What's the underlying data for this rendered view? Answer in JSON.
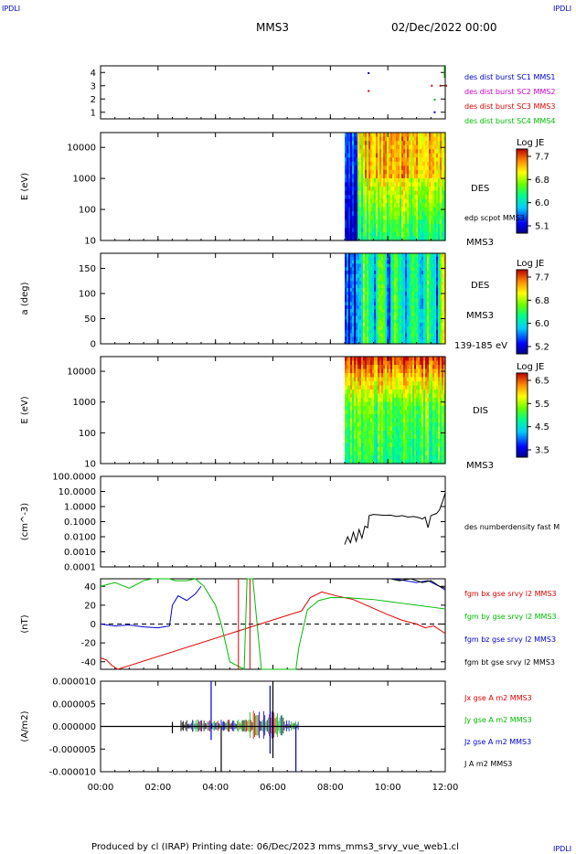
{
  "header": {
    "logo_left": "IPDLI",
    "logo_right": "IPDLI",
    "title": "MMS3",
    "date": "02/Dec/2022 00:00"
  },
  "footer": {
    "text": "Produced by cl (IRAP)   Printing date: 06/Dec/2023   mms_mms3_srvy_vue_web1.cl",
    "logo_right": "IPDLI"
  },
  "colors": {
    "blue": "#0000cc",
    "magenta": "#cc00cc",
    "red": "#dd0000",
    "green": "#00bb00",
    "black": "#000000"
  },
  "time_axis": {
    "ticks": [
      "00:00",
      "02:00",
      "04:00",
      "06:00",
      "08:00",
      "10:00",
      "12:00"
    ],
    "range_hours": [
      0,
      12
    ]
  },
  "chart_data": [
    {
      "type": "scatter",
      "panel": "burst-availability",
      "yticks": [
        "1",
        "2",
        "3",
        "4"
      ],
      "ylim": [
        0.5,
        4.5
      ],
      "legend": [
        {
          "label": "des dist burst SC1 MMS1",
          "color": "#0000cc"
        },
        {
          "label": "des dist burst SC2 MMS2",
          "color": "#cc00cc"
        },
        {
          "label": "des dist burst SC3 MMS3",
          "color": "#dd0000"
        },
        {
          "label": "des dist burst SC4 MMS4",
          "color": "#00bb00"
        }
      ],
      "points": [
        [
          9.3,
          3.95
        ],
        [
          11.5,
          3.0
        ],
        [
          11.8,
          3.0
        ],
        [
          12.0,
          3.0
        ],
        [
          9.3,
          2.6
        ],
        [
          11.6,
          1.95
        ],
        [
          11.6,
          1.0
        ]
      ]
    },
    {
      "type": "heatmap",
      "panel": "des-energy",
      "ylabel": "E (eV)",
      "yticks": [
        "10",
        "100",
        "1000",
        "10000"
      ],
      "yscale": "log",
      "ylim": [
        10,
        30000
      ],
      "data_start_hour": 8.5,
      "colorbar": {
        "title": "Log JE",
        "ticks": [
          "7.7",
          "6.8",
          "6.0",
          "5.1"
        ]
      },
      "labels": [
        "DES",
        "edp scpot MMS3",
        "MMS3"
      ]
    },
    {
      "type": "heatmap",
      "panel": "des-pitch-angle",
      "ylabel": "a (deg)",
      "yticks": [
        "0",
        "50",
        "100",
        "150"
      ],
      "ylim": [
        0,
        180
      ],
      "data_start_hour": 8.5,
      "colorbar": {
        "title": "Log JE",
        "ticks": [
          "7.7",
          "6.8",
          "6.0",
          "5.2"
        ]
      },
      "labels": [
        "DES",
        "MMS3",
        "139-185 eV"
      ]
    },
    {
      "type": "heatmap",
      "panel": "dis-energy",
      "ylabel": "E (eV)",
      "yticks": [
        "10",
        "100",
        "1000",
        "10000"
      ],
      "yscale": "log",
      "ylim": [
        10,
        30000
      ],
      "data_start_hour": 8.5,
      "colorbar": {
        "title": "Log JE",
        "ticks": [
          "6.5",
          "5.5",
          "4.5",
          "3.5"
        ]
      },
      "labels": [
        "DIS",
        "MMS3"
      ]
    },
    {
      "type": "line",
      "panel": "density",
      "ylabel": "(cm^-3)",
      "yscale": "log",
      "yticks": [
        "0.0001",
        "0.0010",
        "0.0100",
        "0.1000",
        "1.0000",
        "10.0000",
        "100.0000"
      ],
      "ylim": [
        0.0001,
        100
      ],
      "series": [
        {
          "name": "des numberdensity fast M",
          "color": "#000000",
          "x": [
            8.5,
            8.6,
            8.7,
            8.8,
            8.9,
            9.0,
            9.1,
            9.2,
            9.3,
            9.35,
            9.5,
            9.7,
            9.9,
            10.1,
            10.3,
            10.5,
            10.7,
            10.9,
            11.1,
            11.2,
            11.3,
            11.4,
            11.5,
            11.6,
            11.7,
            11.8,
            11.9,
            12.0
          ],
          "y": [
            0.003,
            0.01,
            0.004,
            0.02,
            0.005,
            0.03,
            0.008,
            0.05,
            0.04,
            0.25,
            0.3,
            0.28,
            0.26,
            0.27,
            0.22,
            0.25,
            0.2,
            0.22,
            0.18,
            0.15,
            0.2,
            0.04,
            0.25,
            0.3,
            0.35,
            0.6,
            2.0,
            8.0
          ]
        }
      ]
    },
    {
      "type": "line",
      "panel": "magnetic-field",
      "ylabel": "(nT)",
      "yticks": [
        "-40",
        "-20",
        "0",
        "20",
        "40"
      ],
      "ylim": [
        -48,
        48
      ],
      "zero_line": true,
      "series": [
        {
          "name": "fgm bx gse srvy l2 MMS3",
          "color": "#dd0000",
          "x": [
            0,
            0.2,
            0.4,
            0.6,
            7.0,
            7.3,
            7.7,
            8.2,
            8.8,
            9.4,
            10.0,
            10.5,
            11.0,
            11.3,
            11.6,
            11.9,
            12.0
          ],
          "y": [
            -36,
            -38,
            -44,
            -50,
            14,
            28,
            34,
            30,
            26,
            18,
            10,
            4,
            0,
            -4,
            -2,
            -8,
            -10
          ]
        },
        {
          "name": "fgm by gse srvy l2 MMS3",
          "color": "#00bb00",
          "x": [
            0,
            0.5,
            1.0,
            1.5,
            1.8,
            2.4,
            2.6,
            3.0,
            3.3,
            3.6,
            4.0,
            4.2,
            4.5,
            5.0,
            5.1,
            5.3,
            5.6,
            6.8,
            6.9,
            7.2,
            7.6,
            8.0,
            8.6,
            9.0,
            9.5,
            10.0,
            10.5,
            11.0,
            11.5,
            12.0
          ],
          "y": [
            40,
            44,
            38,
            46,
            50,
            50,
            46,
            46,
            48,
            40,
            20,
            0,
            -40,
            -52,
            48,
            48,
            -52,
            -52,
            -25,
            15,
            25,
            28,
            28,
            27,
            26,
            24,
            22,
            20,
            18,
            16
          ]
        },
        {
          "name": "fgm bz gse srvy l2 MMS3",
          "color": "#0000cc",
          "x": [
            0,
            0.5,
            1.0,
            1.5,
            2.0,
            2.4,
            2.5,
            2.7,
            3.0,
            3.3,
            3.5,
            10.0,
            10.2,
            10.6,
            11.0,
            11.4,
            11.8,
            12.0
          ],
          "y": [
            0,
            -2,
            -1,
            -3,
            -4,
            -2,
            20,
            30,
            25,
            32,
            40,
            null,
            48,
            46,
            44,
            46,
            40,
            36
          ]
        },
        {
          "name": "fgm bt gse srvy l2 MMS3",
          "color": "#000000",
          "x": [
            10.1,
            10.4,
            10.8,
            11.2,
            11.5,
            11.8,
            12.0
          ],
          "y": [
            48,
            46,
            48,
            44,
            46,
            40,
            38
          ]
        }
      ]
    },
    {
      "type": "line",
      "panel": "current-density",
      "ylabel": "(A/m2)",
      "yticks": [
        "-0.000010",
        "-0.000005",
        "0.000000",
        "0.000005",
        "0.000010"
      ],
      "ylim": [
        -1e-05,
        1e-05
      ],
      "series": [
        {
          "name": "Jx gse A m2 MMS3",
          "color": "#dd0000"
        },
        {
          "name": "Jy gse A m2 MMS3",
          "color": "#00bb00"
        },
        {
          "name": "Jz gse A m2 MMS3",
          "color": "#0000cc"
        },
        {
          "name": "J A m2 MMS3",
          "color": "#000000"
        }
      ],
      "spikes": [
        {
          "x": 2.5,
          "ymin": -1.5e-06,
          "ymax": 1e-06
        },
        {
          "x": 3.85,
          "ymin": -3e-06,
          "ymax": 1.2e-05
        },
        {
          "x": 4.2,
          "ymin": -1.2e-05,
          "ymax": 0.0
        },
        {
          "x": 5.9,
          "ymin": -6e-06,
          "ymax": 9e-06
        },
        {
          "x": 6.0,
          "ymin": -7e-06,
          "ymax": 1.2e-05
        },
        {
          "x": 6.8,
          "ymin": -1.2e-05,
          "ymax": 0.0
        }
      ]
    }
  ]
}
